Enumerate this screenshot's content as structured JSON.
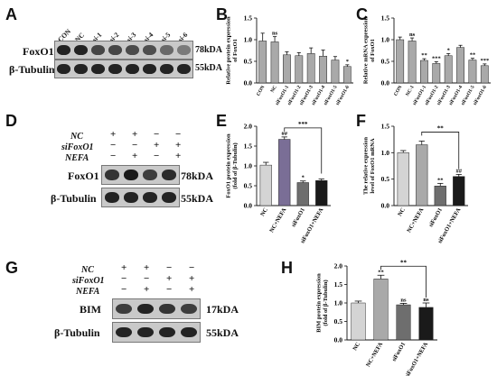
{
  "panels": {
    "A": {
      "label": "A",
      "lanes": [
        "CON",
        "NC",
        "si-1",
        "si-2",
        "si-3",
        "si-4",
        "si-5",
        "si-6"
      ],
      "row1_label": "FoxO1",
      "row1_kda": "78kDA",
      "row2_label": "β-Tubulin",
      "row2_kda": "55kDA",
      "band_intensity_row1": [
        0.95,
        0.95,
        0.75,
        0.75,
        0.72,
        0.7,
        0.55,
        0.45
      ]
    },
    "D": {
      "label": "D",
      "conditions": [
        {
          "name": "NC",
          "signs": [
            "+",
            "+",
            "−",
            "−"
          ]
        },
        {
          "name": "siFoxO1",
          "signs": [
            "−",
            "−",
            "+",
            "+"
          ]
        },
        {
          "name": "NEFA",
          "signs": [
            "−",
            "+",
            "−",
            "+"
          ]
        }
      ],
      "row1_label": "FoxO1",
      "row1_kda": "78kDA",
      "row2_label": "β-Tubulin",
      "row2_kda": "55kDA"
    },
    "G": {
      "label": "G",
      "conditions": [
        {
          "name": "NC",
          "signs": [
            "+",
            "+",
            "−",
            "−"
          ]
        },
        {
          "name": "siFoxO1",
          "signs": [
            "−",
            "−",
            "+",
            "+"
          ]
        },
        {
          "name": "NEFA",
          "signs": [
            "−",
            "+",
            "−",
            "+"
          ]
        }
      ],
      "row1_label": "BIM",
      "row1_kda": "17kDA",
      "row2_label": "β-Tubulin",
      "row2_kda": "55kDA"
    }
  },
  "colors": {
    "gray_light": "#d4d4d4",
    "gray_mid": "#a9a9a9",
    "gray_dark": "#6e6e6e",
    "black": "#1a1a1a",
    "bar_purple": "#7a6e96"
  },
  "chart_data": [
    {
      "panel": "B",
      "type": "bar",
      "categories": [
        "CON",
        "NC",
        "siFoxO1-1",
        "siFoxO1-2",
        "siFoxO1-3",
        "siFoxO1-4",
        "siFoxO1-5",
        "siFoxO1-6"
      ],
      "values": [
        0.97,
        0.95,
        0.65,
        0.63,
        0.68,
        0.62,
        0.53,
        0.38
      ],
      "errors": [
        0.18,
        0.12,
        0.07,
        0.07,
        0.13,
        0.14,
        0.08,
        0.04
      ],
      "annotations": [
        "",
        "ns",
        "",
        "",
        "",
        "",
        "",
        "*"
      ],
      "ylabel": "Relative protein expression\nof FoxO1",
      "ylim": [
        0,
        1.5
      ],
      "yticks": [
        "0.0",
        "0.5",
        "1.0",
        "1.5"
      ],
      "fill": "gray_mid"
    },
    {
      "panel": "C",
      "type": "bar",
      "categories": [
        "CON",
        "NC-1",
        "siFoxO1-1",
        "siFoxO1-2",
        "siFoxO1-3",
        "siFoxO1-4",
        "siFoxO1-5",
        "siFoxO1-6"
      ],
      "values": [
        1.0,
        0.97,
        0.52,
        0.45,
        0.63,
        0.82,
        0.53,
        0.4
      ],
      "errors": [
        0.06,
        0.07,
        0.04,
        0.04,
        0.05,
        0.05,
        0.04,
        0.04
      ],
      "annotations": [
        "",
        "ns",
        "**",
        "***",
        "*",
        "",
        "**",
        "***"
      ],
      "ylabel": "Relative mRNA expression\nof FoxO1",
      "ylim": [
        0,
        1.5
      ],
      "yticks": [
        "0.0",
        "0.5",
        "1.0",
        "1.5"
      ],
      "fill": "gray_mid"
    },
    {
      "panel": "E",
      "type": "bar",
      "categories": [
        "NC",
        "NC+NEFA",
        "siFoxO1",
        "siFoxO1+NEFA"
      ],
      "values": [
        1.02,
        1.67,
        0.58,
        0.63
      ],
      "errors": [
        0.07,
        0.06,
        0.04,
        0.04
      ],
      "annotations": [
        "",
        "##",
        "*",
        ""
      ],
      "bracket": {
        "from": 1,
        "to": 3,
        "label": "***"
      },
      "ylabel": "FoxO1 protein expression\n(fold of β-Tubulin)",
      "ylim": [
        0,
        2.0
      ],
      "yticks": [
        "0.0",
        "0.5",
        "1.0",
        "1.5",
        "2.0"
      ],
      "fills": [
        "gray_light",
        "bar_purple",
        "gray_dark",
        "black"
      ]
    },
    {
      "panel": "F",
      "type": "bar",
      "categories": [
        "NC",
        "NC+NEFA",
        "siFoxO1",
        "siFoxO1+NEFA"
      ],
      "values": [
        1.0,
        1.15,
        0.37,
        0.55
      ],
      "errors": [
        0.04,
        0.07,
        0.05,
        0.04
      ],
      "annotations": [
        "",
        "",
        "**",
        "##"
      ],
      "bracket": {
        "from": 1,
        "to": 3,
        "label": "**"
      },
      "ylabel": "The relative expression\nlevel of FoxO1 mRNA",
      "ylim": [
        0,
        1.5
      ],
      "yticks": [
        "0.0",
        "0.5",
        "1.0",
        "1.5"
      ],
      "fills": [
        "gray_light",
        "gray_mid",
        "gray_dark",
        "black"
      ]
    },
    {
      "panel": "H",
      "type": "bar",
      "categories": [
        "NC",
        "NC+NEFA",
        "siFoxO1",
        "siFoxO1+NEFA"
      ],
      "values": [
        1.0,
        1.65,
        0.95,
        0.88
      ],
      "errors": [
        0.05,
        0.1,
        0.04,
        0.12
      ],
      "annotations": [
        "",
        "**",
        "ns",
        "ns"
      ],
      "bracket": {
        "from": 1,
        "to": 3,
        "label": "**"
      },
      "ylabel": "BIM protein expression\n(fold of β-Tubulin)",
      "ylim": [
        0,
        2.0
      ],
      "yticks": [
        "0.0",
        "0.5",
        "1.0",
        "1.5",
        "2.0"
      ],
      "fills": [
        "gray_light",
        "gray_mid",
        "gray_dark",
        "black"
      ]
    }
  ]
}
